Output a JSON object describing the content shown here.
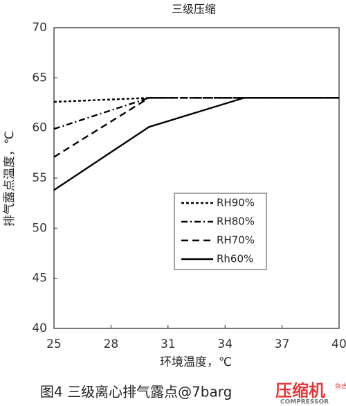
{
  "chart_data": {
    "type": "line",
    "title": "三级压缩",
    "xlabel": "环境温度，℃",
    "ylabel": "排气露点温度，℃",
    "caption": "图4 三级离心排气露点@7barg",
    "watermark": [
      "压缩机",
      "杂志",
      "COMPRESSOR"
    ],
    "x": [
      25,
      30,
      35,
      40
    ],
    "series": [
      {
        "name": "RH90%",
        "color": "#000000",
        "dash": "dot",
        "values": [
          62.6,
          63.0,
          63.0,
          63.0
        ]
      },
      {
        "name": "RH80%",
        "color": "#000000",
        "dash": "dashdot",
        "values": [
          59.9,
          63.0,
          63.0,
          63.0
        ]
      },
      {
        "name": "RH70%",
        "color": "#000000",
        "dash": "dash",
        "values": [
          57.1,
          63.0,
          63.0,
          63.0
        ]
      },
      {
        "name": "Rh60%",
        "color": "#000000",
        "dash": "solid",
        "values": [
          53.8,
          60.1,
          63.0,
          63.0
        ]
      }
    ],
    "xlim": [
      25,
      40
    ],
    "xticks": [
      25,
      28,
      31,
      34,
      37,
      40
    ],
    "ylim": [
      40,
      70
    ],
    "yticks": [
      40,
      45,
      50,
      55,
      60,
      65,
      70
    ],
    "grid": false
  }
}
